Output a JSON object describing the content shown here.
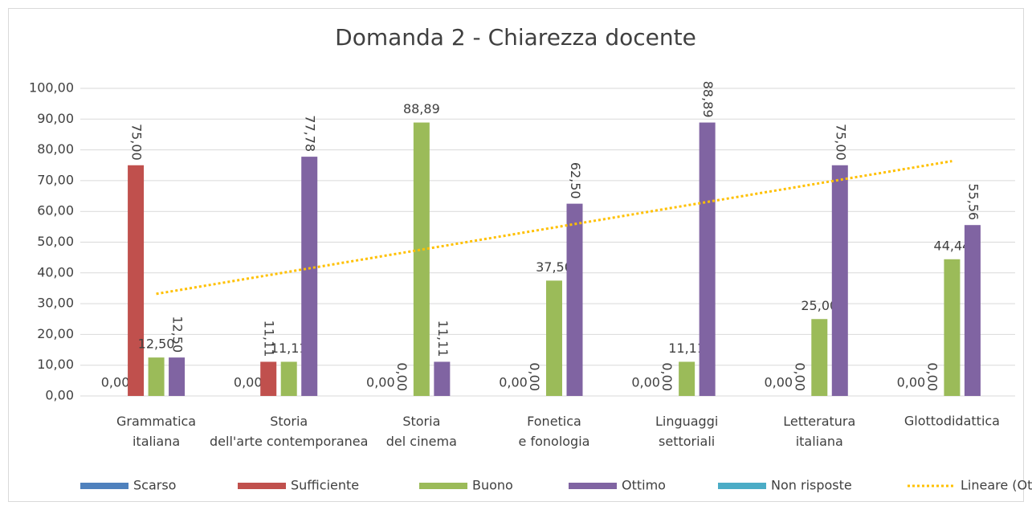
{
  "chart_data": {
    "type": "bar",
    "title": "Domanda 2 - Chiarezza docente",
    "categories": [
      "Grammatica italiana",
      "Storia dell'arte contemporanea",
      "Storia del cinema",
      "Fonetica e fonologia",
      "Linguaggi settoriali",
      "Letteratura italiana",
      "Glottodidattica"
    ],
    "series": [
      {
        "name": "Scarso",
        "color": "#4f81bd",
        "values": [
          0,
          0,
          0,
          0,
          0,
          0,
          0
        ],
        "value_labels": [
          "0,00",
          "0,00",
          "0,00",
          "0,00",
          "0,00",
          "0,00",
          "0,00"
        ]
      },
      {
        "name": "Sufficiente",
        "color": "#c0504d",
        "values": [
          75,
          11.11,
          0,
          0,
          0,
          0,
          0
        ],
        "value_labels": [
          "75,00",
          "11,11",
          "0,00",
          "0,00",
          "0,00",
          "0,00",
          "0,00"
        ]
      },
      {
        "name": "Buono",
        "color": "#9bbb59",
        "values": [
          12.5,
          11.11,
          88.89,
          37.5,
          11.11,
          25,
          44.44
        ],
        "value_labels": [
          "12,50",
          "11,11",
          "88,89",
          "37,50",
          "11,11",
          "25,00",
          "44,44"
        ]
      },
      {
        "name": "Ottimo",
        "color": "#8064a2",
        "values": [
          12.5,
          77.78,
          11.11,
          62.5,
          88.89,
          75,
          55.56
        ],
        "value_labels": [
          "12,50",
          "77,78",
          "11,11",
          "62,50",
          "88,89",
          "75,00",
          "55,56"
        ]
      },
      {
        "name": "Non risposte",
        "color": "#4bacc6",
        "values": [
          null,
          null,
          null,
          null,
          null,
          null,
          null
        ]
      }
    ],
    "trendline": {
      "name": "Lineare (Ottimo)",
      "source": "Ottimo",
      "color": "#ffc000"
    },
    "ylim": [
      0,
      100
    ],
    "yticks": [
      {
        "value": 0,
        "label": "0,00"
      },
      {
        "value": 10,
        "label": "10,00"
      },
      {
        "value": 20,
        "label": "20,00"
      },
      {
        "value": 30,
        "label": "30,00"
      },
      {
        "value": 40,
        "label": "40,00"
      },
      {
        "value": 50,
        "label": "50,00"
      },
      {
        "value": 60,
        "label": "60,00"
      },
      {
        "value": 70,
        "label": "70,00"
      },
      {
        "value": 80,
        "label": "80,00"
      },
      {
        "value": 90,
        "label": "90,00"
      },
      {
        "value": 100,
        "label": "100,00"
      }
    ],
    "grid": true,
    "legend": "bottom"
  }
}
